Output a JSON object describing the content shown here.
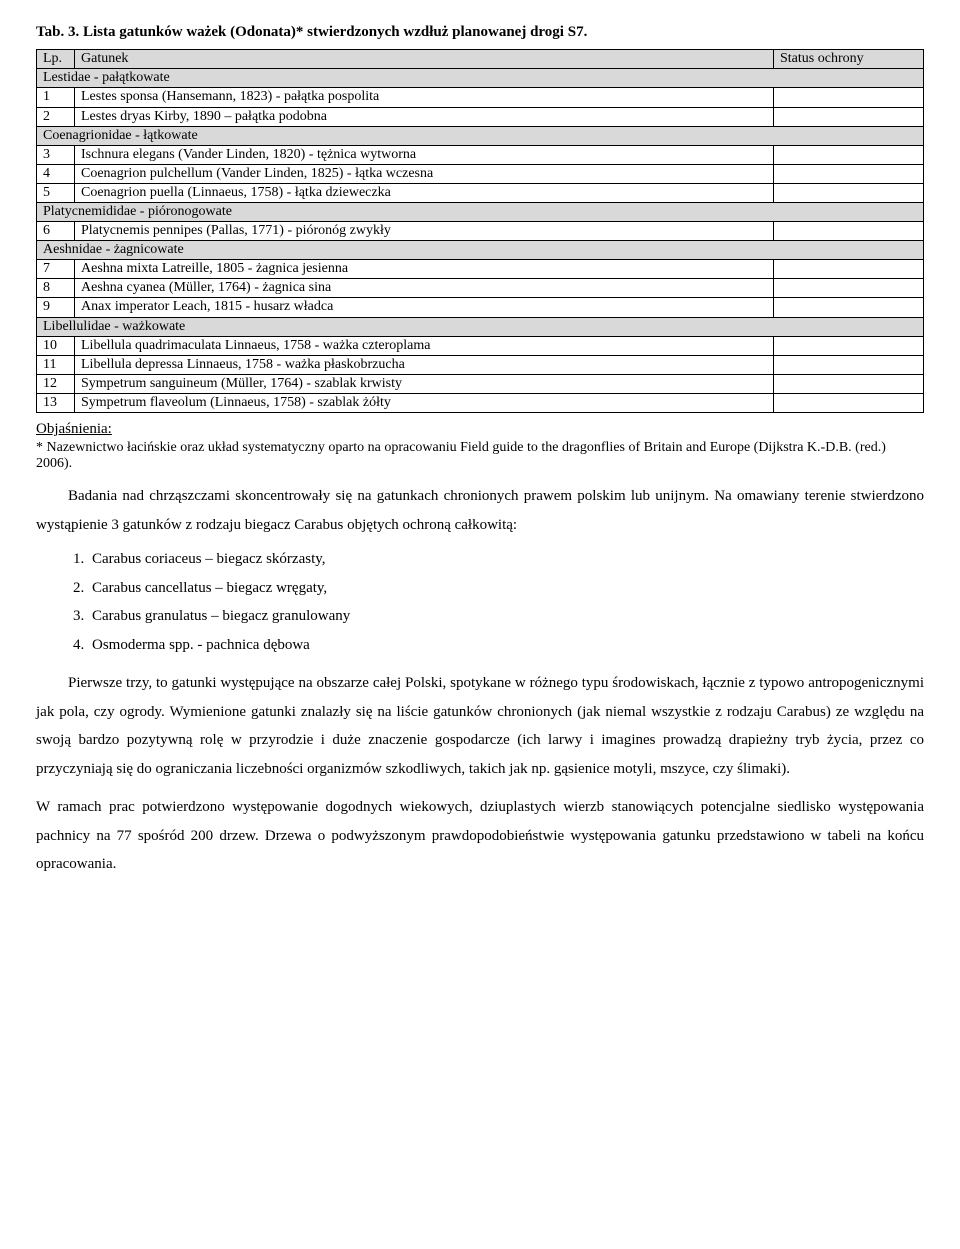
{
  "tableTitle": "Tab. 3. Lista gatunków ważek (Odonata)* stwierdzonych wzdłuż planowanej drogi S7.",
  "columns": {
    "lp": "Lp.",
    "species": "Gatunek",
    "status": "Status ochrony"
  },
  "rows": [
    {
      "type": "group",
      "label": "Lestidae - pałątkowate"
    },
    {
      "type": "row",
      "lp": "1",
      "sp": "Lestes sponsa (Hansemann, 1823) - pałątka pospolita",
      "st": ""
    },
    {
      "type": "row",
      "lp": "2",
      "sp": "Lestes dryas Kirby, 1890 – pałątka podobna",
      "st": ""
    },
    {
      "type": "group",
      "label": "Coenagrionidae - łątkowate"
    },
    {
      "type": "row",
      "lp": "3",
      "sp": "Ischnura elegans (Vander Linden, 1820) - tężnica wytworna",
      "st": ""
    },
    {
      "type": "row",
      "lp": "4",
      "sp": "Coenagrion pulchellum (Vander Linden, 1825) - łątka wczesna",
      "st": ""
    },
    {
      "type": "row",
      "lp": "5",
      "sp": "Coenagrion puella (Linnaeus, 1758) - łątka dzieweczka",
      "st": ""
    },
    {
      "type": "group",
      "label": "Platycnemididae - pióronogowate"
    },
    {
      "type": "row",
      "lp": "6",
      "sp": "Platycnemis pennipes (Pallas, 1771) - pióronóg zwykły",
      "st": ""
    },
    {
      "type": "group",
      "label": "Aeshnidae - żagnicowate"
    },
    {
      "type": "row",
      "lp": "7",
      "sp": "Aeshna mixta Latreille, 1805 - żagnica jesienna",
      "st": ""
    },
    {
      "type": "row",
      "lp": "8",
      "sp": "Aeshna cyanea (Müller, 1764) - żagnica sina",
      "st": ""
    },
    {
      "type": "row",
      "lp": "9",
      "sp": "Anax imperator Leach, 1815 - husarz władca",
      "st": ""
    },
    {
      "type": "group",
      "label": "Libellulidae - ważkowate"
    },
    {
      "type": "row",
      "lp": "10",
      "sp": "Libellula quadrimaculata Linnaeus, 1758 - ważka czteroplama",
      "st": ""
    },
    {
      "type": "row",
      "lp": "11",
      "sp": "Libellula depressa Linnaeus, 1758 - ważka płaskobrzucha",
      "st": ""
    },
    {
      "type": "row",
      "lp": "12",
      "sp": "Sympetrum sanguineum (Müller, 1764) - szablak krwisty",
      "st": ""
    },
    {
      "type": "row",
      "lp": "13",
      "sp": "Sympetrum flaveolum (Linnaeus, 1758) - szablak żółty",
      "st": ""
    }
  ],
  "expl": {
    "head": "Objaśnienia:",
    "body": "* Nazewnictwo łacińskie oraz układ systematyczny oparto na opracowaniu Field guide to the dragonflies of Britain and Europe (Dijkstra K.-D.B. (red.) 2006)."
  },
  "para1": "Badania nad chrząszczami skoncentrowały się na gatunkach chronionych prawem polskim lub unijnym. Na omawiany terenie stwierdzono wystąpienie 3 gatunków z rodzaju biegacz Carabus objętych ochroną całkowitą:",
  "list": [
    "Carabus coriaceus – biegacz skórzasty,",
    "Carabus cancellatus – biegacz wręgaty,",
    "Carabus granulatus – biegacz granulowany",
    "Osmoderma spp. - pachnica dębowa"
  ],
  "para2": "Pierwsze trzy, to gatunki występujące na obszarze całej Polski, spotykane w różnego typu środowiskach, łącznie z typowo antropogenicznymi jak pola, czy ogrody. Wymienione gatunki znalazły się na liście gatunków chronionych (jak niemal wszystkie z rodzaju Carabus) ze względu na swoją bardzo pozytywną rolę w przyrodzie i duże znaczenie gospodarcze (ich larwy i imagines prowadzą drapieżny tryb życia, przez co przyczyniają się do ograniczania liczebności organizmów szkodliwych, takich jak np. gąsienice motyli, mszyce, czy ślimaki).",
  "para3": "W ramach prac potwierdzono występowanie dogodnych wiekowych, dziuplastych wierzb stanowiących potencjalne siedlisko występowania pachnicy na 77 spośród 200 drzew. Drzewa o podwyższonym prawdopodobieństwie występowania gatunku przedstawiono w tabeli na końcu opracowania."
}
